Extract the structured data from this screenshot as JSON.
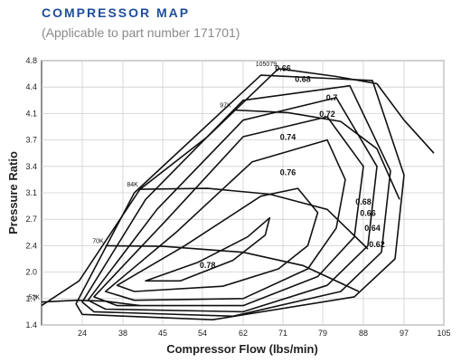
{
  "header": {
    "title": "COMPRESSOR MAP",
    "subtitle": "(Applicable to part number 171701)"
  },
  "chart_data": {
    "type": "line",
    "title": "COMPRESSOR MAP",
    "subtitle": "(Applicable to part number 171701)",
    "xlabel": "Compressor Flow (lbs/min)",
    "ylabel": "Pressure Ratio",
    "xticks": [
      24,
      38,
      45,
      54,
      62,
      71,
      79,
      88,
      97,
      105
    ],
    "yticks": [
      1.4,
      1.7,
      2.0,
      2.4,
      2.7,
      3.1,
      3.4,
      3.7,
      4.1,
      4.4,
      4.8
    ],
    "xlim": [
      11,
      105
    ],
    "ylim": [
      1.4,
      4.8
    ],
    "grid": true,
    "speed_lines": [
      {
        "name": "52K",
        "x": [
          11,
          22,
          32,
          41
        ],
        "y": [
          1.66,
          1.68,
          1.67,
          1.62
        ]
      },
      {
        "name": "70K",
        "x": [
          32,
          45,
          62,
          75,
          87
        ],
        "y": [
          2.4,
          2.39,
          2.3,
          2.1,
          1.78
        ]
      },
      {
        "name": "84K",
        "x": [
          41,
          55,
          68,
          80,
          89
        ],
        "y": [
          3.14,
          3.15,
          3.08,
          2.85,
          2.35
        ]
      },
      {
        "name": "97K",
        "x": [
          60,
          72,
          83,
          91,
          96
        ],
        "y": [
          4.14,
          4.11,
          3.98,
          3.6,
          3.0
        ]
      },
      {
        "name": "105079",
        "x": [
          70,
          82,
          91,
          97,
          103
        ],
        "y": [
          4.68,
          4.56,
          4.45,
          4.0,
          3.55
        ]
      }
    ],
    "surge_line": {
      "x": [
        11,
        23,
        41,
        55,
        70
      ],
      "y": [
        1.62,
        1.9,
        3.14,
        3.75,
        4.68
      ]
    },
    "efficiency_islands": [
      {
        "label": "0.78",
        "x": [
          42,
          53,
          63,
          68,
          67,
          60,
          49,
          42
        ],
        "y": [
          1.9,
          2.15,
          2.5,
          2.72,
          2.52,
          2.18,
          1.9,
          1.9
        ]
      },
      {
        "label": "0.76",
        "x": [
          36,
          50,
          66,
          74,
          78,
          76,
          70,
          58,
          40,
          36
        ],
        "y": [
          1.85,
          2.4,
          3.05,
          3.15,
          2.8,
          2.4,
          2.05,
          1.84,
          1.78,
          1.85
        ]
      },
      {
        "label": "0.74",
        "x": [
          32,
          48,
          64,
          80,
          84,
          82,
          76,
          62,
          40,
          32
        ],
        "y": [
          1.78,
          2.55,
          3.45,
          3.7,
          3.25,
          2.6,
          2.05,
          1.7,
          1.68,
          1.78
        ]
      },
      {
        "label": "0.72",
        "x": [
          28,
          46,
          62,
          80,
          88,
          86,
          78,
          62,
          36,
          28
        ],
        "y": [
          1.72,
          2.7,
          3.75,
          4.05,
          3.4,
          2.5,
          1.95,
          1.62,
          1.62,
          1.72
        ]
      },
      {
        "label": "0.7",
        "x": [
          26,
          44,
          62,
          82,
          91,
          89,
          80,
          62,
          32,
          26
        ],
        "y": [
          1.68,
          2.85,
          4.0,
          4.28,
          3.4,
          2.4,
          1.85,
          1.55,
          1.58,
          1.68
        ]
      },
      {
        "label": "0.68",
        "x": [
          24,
          42,
          62,
          85,
          94,
          92,
          83,
          60,
          28,
          24
        ],
        "y": [
          1.66,
          3.0,
          4.25,
          4.42,
          3.35,
          2.3,
          1.78,
          1.5,
          1.55,
          1.66
        ]
      },
      {
        "label": "0.66",
        "x": [
          22,
          40,
          66,
          90,
          97,
          95,
          86,
          56,
          24,
          22
        ],
        "y": [
          1.64,
          3.1,
          4.58,
          4.5,
          3.3,
          2.2,
          1.72,
          1.46,
          1.52,
          1.64
        ]
      }
    ],
    "efficiency_labels": [
      {
        "text": "0.66",
        "x": 71,
        "y": 4.64
      },
      {
        "text": "0.68",
        "x": 75,
        "y": 4.48
      },
      {
        "text": "0.7",
        "x": 81,
        "y": 4.25
      },
      {
        "text": "0.72",
        "x": 80,
        "y": 4.05
      },
      {
        "text": "0.74",
        "x": 72,
        "y": 3.7
      },
      {
        "text": "0.76",
        "x": 72,
        "y": 3.3
      },
      {
        "text": "0.78",
        "x": 55,
        "y": 2.06
      },
      {
        "text": "0.68",
        "x": 88,
        "y": 2.92
      },
      {
        "text": "0.66",
        "x": 89,
        "y": 2.75
      },
      {
        "text": "0.64",
        "x": 90,
        "y": 2.57
      },
      {
        "text": "0.62",
        "x": 91,
        "y": 2.38
      }
    ]
  }
}
